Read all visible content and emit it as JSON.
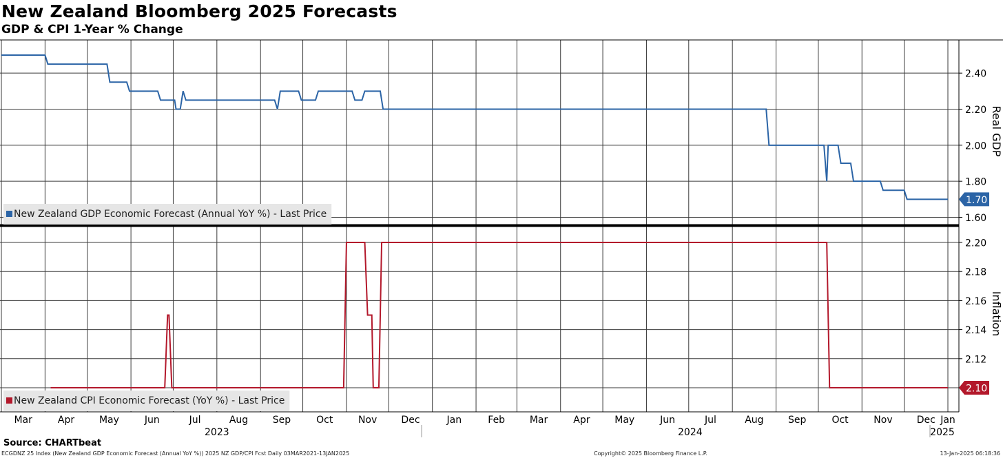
{
  "title": "New Zealand Bloomberg 2025 Forecasts",
  "subtitle": "GDP & CPI 1-Year % Change",
  "source": "Source: CHARTbeat",
  "footer": {
    "left": "ECGDNZ 25 Index (New Zealand GDP Economic Forecast (Annual YoY %)) 2025 NZ GDP/CPI Fcst  Daily 03MAR2021-13JAN2025",
    "center": "Copyright© 2025 Bloomberg Finance L.P.",
    "right": "13-Jan-2025 06:18:36"
  },
  "chart_data": [
    {
      "type": "line",
      "panel": "top",
      "ylabel": "Real GDP",
      "ylim": [
        1.6,
        2.5
      ],
      "yticks": [
        "2.40",
        "2.20",
        "2.00",
        "1.80",
        "1.60"
      ],
      "grid": true,
      "legend": "bottom-left",
      "series": [
        {
          "name": "New Zealand GDP Economic Forecast (Annual YoY %) - Last Price",
          "color": "#2b64a6",
          "last_value_label": "1.70",
          "points": [
            [
              "2023-03-01",
              2.5
            ],
            [
              "2023-04-01",
              2.5
            ],
            [
              "2023-04-03",
              2.45
            ],
            [
              "2023-05-15",
              2.45
            ],
            [
              "2023-05-17",
              2.35
            ],
            [
              "2023-05-29",
              2.35
            ],
            [
              "2023-05-31",
              2.3
            ],
            [
              "2023-06-20",
              2.3
            ],
            [
              "2023-06-22",
              2.25
            ],
            [
              "2023-07-02",
              2.25
            ],
            [
              "2023-07-03",
              2.2
            ],
            [
              "2023-07-06",
              2.2
            ],
            [
              "2023-07-08",
              2.3
            ],
            [
              "2023-07-10",
              2.25
            ],
            [
              "2023-09-11",
              2.25
            ],
            [
              "2023-09-13",
              2.2
            ],
            [
              "2023-09-15",
              2.3
            ],
            [
              "2023-09-28",
              2.3
            ],
            [
              "2023-09-30",
              2.25
            ],
            [
              "2023-10-10",
              2.25
            ],
            [
              "2023-10-12",
              2.3
            ],
            [
              "2023-11-05",
              2.3
            ],
            [
              "2023-11-07",
              2.25
            ],
            [
              "2023-11-12",
              2.25
            ],
            [
              "2023-11-14",
              2.3
            ],
            [
              "2023-11-25",
              2.3
            ],
            [
              "2023-11-27",
              2.2
            ],
            [
              "2024-08-25",
              2.2
            ],
            [
              "2024-08-27",
              2.0
            ],
            [
              "2024-10-05",
              2.0
            ],
            [
              "2024-10-07",
              1.8
            ],
            [
              "2024-10-08",
              2.0
            ],
            [
              "2024-10-15",
              2.0
            ],
            [
              "2024-10-17",
              1.9
            ],
            [
              "2024-10-24",
              1.9
            ],
            [
              "2024-10-26",
              1.8
            ],
            [
              "2024-11-14",
              1.8
            ],
            [
              "2024-11-16",
              1.75
            ],
            [
              "2024-12-01",
              1.75
            ],
            [
              "2024-12-03",
              1.7
            ],
            [
              "2025-01-01",
              1.7
            ]
          ]
        }
      ]
    },
    {
      "type": "line",
      "panel": "bottom",
      "ylabel": "Inflation",
      "ylim": [
        2.095,
        2.205
      ],
      "yticks": [
        "2.20",
        "2.18",
        "2.16",
        "2.14",
        "2.12",
        "2.10"
      ],
      "grid": true,
      "legend": "bottom-left",
      "series": [
        {
          "name": "New Zealand CPI Economic Forecast (YoY %) - Last Price",
          "color": "#b3182b",
          "last_value_label": "2.10",
          "points": [
            [
              "2023-04-05",
              2.1
            ],
            [
              "2023-06-25",
              2.1
            ],
            [
              "2023-06-27",
              2.15
            ],
            [
              "2023-06-28",
              2.15
            ],
            [
              "2023-06-30",
              2.1
            ],
            [
              "2023-10-30",
              2.1
            ],
            [
              "2023-11-01",
              2.2
            ],
            [
              "2023-11-14",
              2.2
            ],
            [
              "2023-11-16",
              2.15
            ],
            [
              "2023-11-19",
              2.15
            ],
            [
              "2023-11-20",
              2.1
            ],
            [
              "2023-11-24",
              2.1
            ],
            [
              "2023-11-26",
              2.2
            ],
            [
              "2024-10-07",
              2.2
            ],
            [
              "2024-10-09",
              2.1
            ],
            [
              "2025-01-01",
              2.1
            ]
          ]
        }
      ]
    }
  ],
  "x_axis": {
    "month_ticks": [
      "Mar",
      "Apr",
      "May",
      "Jun",
      "Jul",
      "Aug",
      "Sep",
      "Oct",
      "Nov",
      "Dec",
      "Jan",
      "Feb",
      "Mar",
      "Apr",
      "May",
      "Jun",
      "Jul",
      "Aug",
      "Sep",
      "Oct",
      "Nov",
      "Dec",
      "Jan"
    ],
    "years": [
      "2023",
      "2024",
      "2025"
    ]
  }
}
